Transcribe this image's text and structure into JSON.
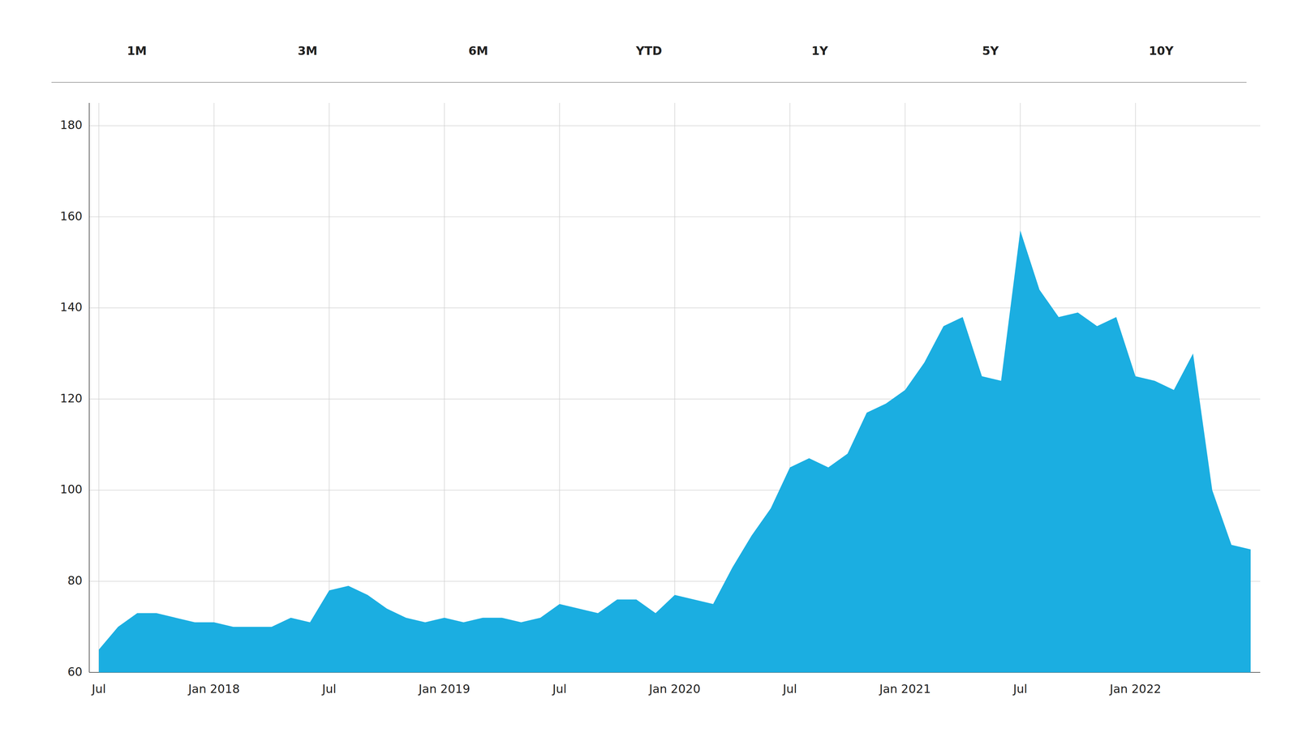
{
  "chart_data": {
    "type": "area",
    "annotations": [
      "1M",
      "3M",
      "6M",
      "YTD",
      "1Y",
      "5Y",
      "10Y"
    ],
    "categories": [
      "Jul",
      null,
      null,
      null,
      null,
      null,
      "Jan 2018",
      null,
      null,
      null,
      null,
      null,
      "Jul",
      null,
      null,
      null,
      null,
      null,
      "Jan 2019",
      null,
      null,
      null,
      null,
      null,
      "Jul",
      null,
      null,
      null,
      null,
      null,
      "Jan 2020",
      null,
      null,
      null,
      null,
      null,
      "Jul",
      null,
      null,
      null,
      null,
      null,
      "Jan 2021",
      null,
      null,
      null,
      null,
      null,
      "Jul",
      null,
      null,
      null,
      null,
      null,
      "Jan 2022",
      null,
      null,
      null,
      null,
      null,
      null
    ],
    "values": [
      65,
      70,
      73,
      73,
      72,
      71,
      71,
      70,
      70,
      70,
      72,
      71,
      78,
      79,
      77,
      74,
      72,
      71,
      72,
      71,
      72,
      72,
      71,
      72,
      75,
      74,
      73,
      76,
      76,
      73,
      77,
      76,
      75,
      83,
      90,
      96,
      105,
      107,
      105,
      108,
      117,
      119,
      122,
      128,
      136,
      138,
      125,
      124,
      157,
      144,
      138,
      139,
      136,
      138,
      125,
      124,
      122,
      130,
      100,
      88,
      87
    ],
    "color": "#1baee1",
    "ylim": [
      60,
      185
    ],
    "yticks": [
      60,
      80,
      100,
      120,
      140,
      160,
      180
    ],
    "grid": true
  }
}
